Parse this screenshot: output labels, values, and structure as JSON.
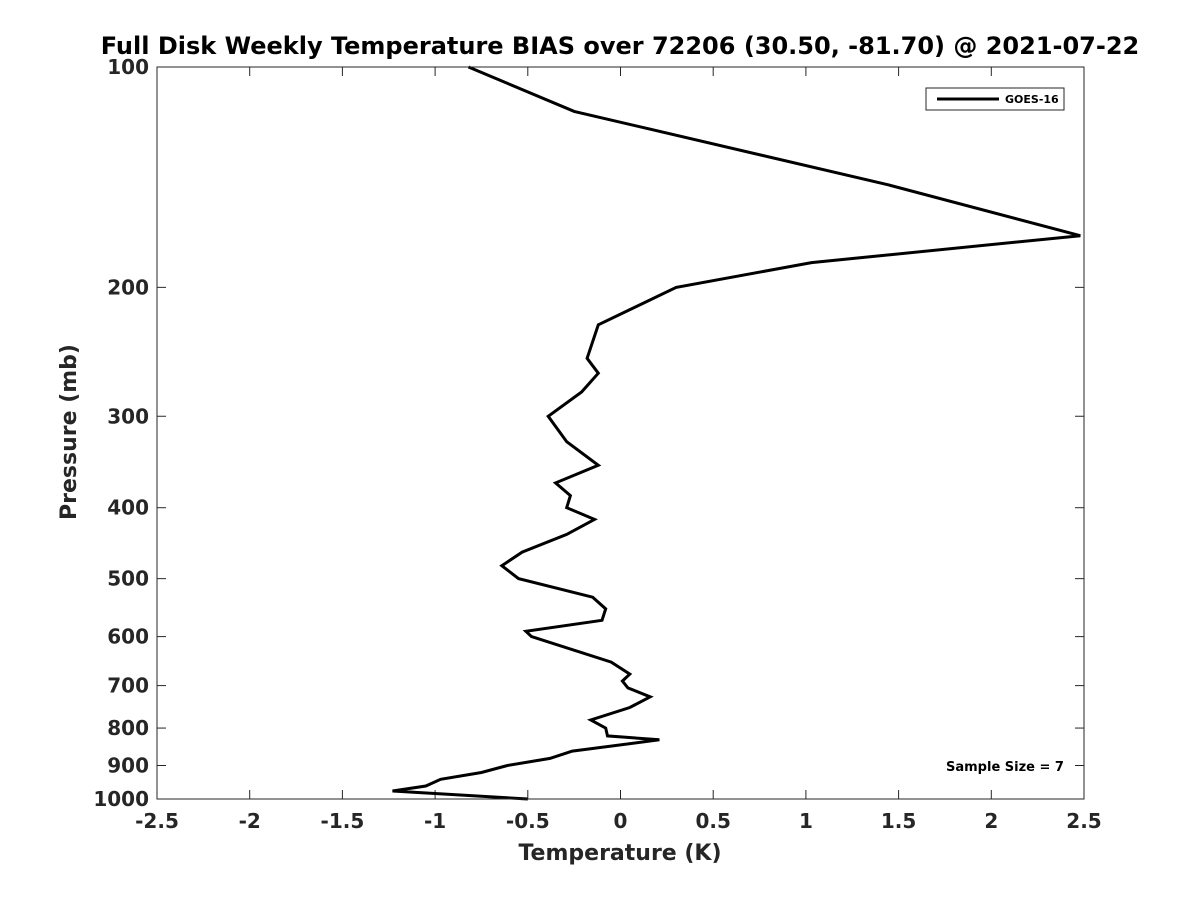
{
  "chart_data": {
    "type": "line",
    "title": "Full Disk Weekly Temperature BIAS over 72206 (30.50, -81.70) @ 2021-07-22",
    "xlabel": "Temperature (K)",
    "ylabel": "Pressure (mb)",
    "xlim": [
      -2.5,
      2.5
    ],
    "ylim": [
      100,
      1000
    ],
    "y_scale": "log",
    "y_reversed": true,
    "grid": false,
    "legend_position": "top-right",
    "x_ticks": [
      -2.5,
      -2,
      -1.5,
      -1,
      -0.5,
      0,
      0.5,
      1,
      1.5,
      2,
      2.5
    ],
    "x_tick_labels": [
      "-2.5",
      "-2",
      "-1.5",
      "-1",
      "-0.5",
      "0",
      "0.5",
      "1",
      "1.5",
      "2",
      "2.5"
    ],
    "y_ticks": [
      100,
      200,
      300,
      400,
      500,
      600,
      700,
      800,
      900,
      1000
    ],
    "y_tick_labels": [
      "100",
      "200",
      "300",
      "400",
      "500",
      "600",
      "700",
      "800",
      "900",
      "1000"
    ],
    "series": [
      {
        "name": "GOES-16",
        "color": "#000000",
        "x": [
          -0.82,
          -0.25,
          1.45,
          2.48,
          1.03,
          0.3,
          -0.12,
          -0.18,
          -0.12,
          -0.21,
          -0.39,
          -0.29,
          -0.12,
          -0.35,
          -0.27,
          -0.29,
          -0.14,
          -0.29,
          -0.53,
          -0.64,
          -0.55,
          -0.15,
          -0.08,
          -0.1,
          -0.51,
          -0.48,
          -0.05,
          0.05,
          0.01,
          0.04,
          0.16,
          0.05,
          -0.16,
          -0.08,
          -0.07,
          0.21,
          -0.26,
          -0.38,
          -0.61,
          -0.75,
          -0.97,
          -1.05,
          -1.23,
          -0.5
        ],
        "y": [
          100,
          115,
          145,
          170,
          185,
          200,
          225,
          250,
          262,
          278,
          300,
          325,
          350,
          370,
          385,
          400,
          415,
          435,
          460,
          480,
          500,
          530,
          550,
          570,
          590,
          600,
          650,
          675,
          690,
          705,
          725,
          750,
          780,
          800,
          820,
          830,
          860,
          880,
          900,
          920,
          940,
          960,
          975,
          1000
        ]
      }
    ],
    "annotations": [
      "Sample Size = 7"
    ]
  },
  "legend": {
    "label": "GOES-16"
  },
  "annotation": {
    "sample_size": "Sample Size = 7"
  }
}
